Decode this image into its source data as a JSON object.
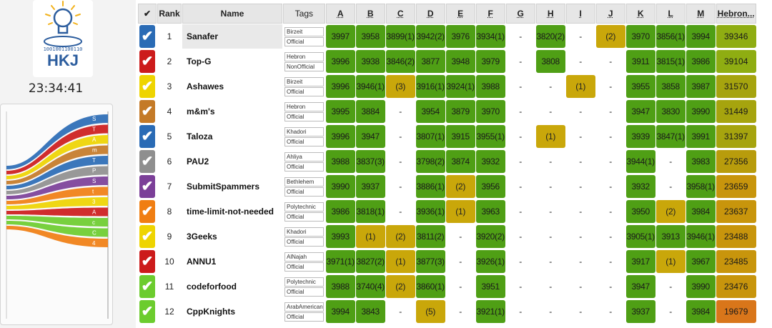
{
  "clock": "23:34:41",
  "logo": {
    "text": "HKJ",
    "binary": "1001001100110"
  },
  "columns": {
    "check": "✔",
    "rank": "Rank",
    "name": "Name",
    "tags": "Tags"
  },
  "problems": [
    "A",
    "B",
    "C",
    "D",
    "E",
    "F",
    "G",
    "H",
    "I",
    "J",
    "K",
    "L",
    "M",
    "Hebron..."
  ],
  "colors": {
    "solved": "#4f9f15",
    "tried": "#c9a70a",
    "header": "#e6e6e6"
  },
  "chart_legend": [
    "S",
    "T",
    "A",
    "m",
    "T",
    "P",
    "S",
    "t",
    "3",
    "A",
    "c",
    "C",
    "4"
  ],
  "teams": [
    {
      "rank": "1",
      "name": "Sanafer",
      "tags": [
        "Birzeit",
        "Official"
      ],
      "color": "#2a6bb5",
      "cells": [
        "3997",
        "3958",
        "3899(1)",
        "3942(2)",
        "3976",
        "3934(1)",
        "-",
        "3820(2)",
        "-",
        "(2)",
        "3970",
        "3856(1)",
        "3994"
      ],
      "score": "39346",
      "score_color": "#8fad12"
    },
    {
      "rank": "2",
      "name": "Top-G",
      "tags": [
        "Hebron",
        "NonOfficial"
      ],
      "color": "#cc1b1b",
      "cells": [
        "3996",
        "3938",
        "3846(2)",
        "3877",
        "3948",
        "3979",
        "-",
        "3808",
        "-",
        "-",
        "3911",
        "3815(1)",
        "3986"
      ],
      "score": "39104",
      "score_color": "#8fad12"
    },
    {
      "rank": "3",
      "name": "Ashawes",
      "tags": [
        "Birzeit",
        "Official"
      ],
      "color": "#eed400",
      "cells": [
        "3996",
        "3946(1)",
        "(3)",
        "3916(1)",
        "3924(1)",
        "3988",
        "-",
        "-",
        "(1)",
        "-",
        "3955",
        "3858",
        "3987"
      ],
      "score": "31570",
      "score_color": "#a6a40e"
    },
    {
      "rank": "4",
      "name": "m&m's",
      "tags": [
        "Hebron",
        "Official"
      ],
      "color": "#c47a27",
      "cells": [
        "3995",
        "3884",
        "-",
        "3954",
        "3879",
        "3970",
        "-",
        "-",
        "-",
        "-",
        "3947",
        "3830",
        "3990"
      ],
      "score": "31449",
      "score_color": "#a6a40e"
    },
    {
      "rank": "5",
      "name": "Taloza",
      "tags": [
        "Khadori",
        "Official"
      ],
      "color": "#2a6bb5",
      "cells": [
        "3996",
        "3947",
        "-",
        "3807(1)",
        "3915",
        "3955(1)",
        "-",
        "(1)",
        "-",
        "-",
        "3939",
        "3847(1)",
        "3991"
      ],
      "score": "31397",
      "score_color": "#a6a40e"
    },
    {
      "rank": "6",
      "name": "PAU2",
      "tags": [
        "Ahliya",
        "Official"
      ],
      "color": "#8f8f8f",
      "cells": [
        "3988",
        "3837(3)",
        "-",
        "3798(2)",
        "3874",
        "3932",
        "-",
        "-",
        "-",
        "-",
        "3944(1)",
        "-",
        "3983"
      ],
      "score": "27356",
      "score_color": "#b89c0c"
    },
    {
      "rank": "7",
      "name": "SubmitSpammers",
      "tags": [
        "Bethlehem",
        "Official"
      ],
      "color": "#7b3f98",
      "cells": [
        "3990",
        "3937",
        "-",
        "3886(1)",
        "(2)",
        "3956",
        "-",
        "-",
        "-",
        "-",
        "3932",
        "-",
        "3958(1)"
      ],
      "score": "23659",
      "score_color": "#c8950c"
    },
    {
      "rank": "8",
      "name": "time-limit-not-needed",
      "tags": [
        "Polytechnic",
        "Official"
      ],
      "color": "#f07e12",
      "cells": [
        "3986",
        "3818(1)",
        "-",
        "3936(1)",
        "(1)",
        "3963",
        "-",
        "-",
        "-",
        "-",
        "3950",
        "(2)",
        "3984"
      ],
      "score": "23637",
      "score_color": "#c8950c"
    },
    {
      "rank": "9",
      "name": "3Geeks",
      "tags": [
        "Khadori",
        "Official"
      ],
      "color": "#eed400",
      "cells": [
        "3993",
        "(1)",
        "(2)",
        "3811(2)",
        "-",
        "3920(2)",
        "-",
        "-",
        "-",
        "-",
        "3905(1)",
        "3913",
        "3946(1)"
      ],
      "score": "23488",
      "score_color": "#c8950c"
    },
    {
      "rank": "10",
      "name": "ANNU1",
      "tags": [
        "AlNajah",
        "Official"
      ],
      "color": "#cc1b1b",
      "cells": [
        "3971(1)",
        "3827(2)",
        "(1)",
        "3877(3)",
        "-",
        "3926(1)",
        "-",
        "-",
        "-",
        "-",
        "3917",
        "(1)",
        "3967"
      ],
      "score": "23485",
      "score_color": "#c8950c"
    },
    {
      "rank": "11",
      "name": "codeforfood",
      "tags": [
        "Polytechnic",
        "Official"
      ],
      "color": "#6ccc2e",
      "cells": [
        "3988",
        "3740(4)",
        "(2)",
        "3860(1)",
        "-",
        "3951",
        "-",
        "-",
        "-",
        "-",
        "3947",
        "-",
        "3990"
      ],
      "score": "23476",
      "score_color": "#c8950c"
    },
    {
      "rank": "12",
      "name": "CppKnights",
      "tags": [
        "ArabAmerican",
        "Official"
      ],
      "color": "#6ccc2e",
      "cells": [
        "3994",
        "3843",
        "-",
        "(5)",
        "-",
        "3921(1)",
        "-",
        "-",
        "-",
        "-",
        "3937",
        "-",
        "3984"
      ],
      "score": "19679",
      "score_color": "#d9761a"
    }
  ]
}
